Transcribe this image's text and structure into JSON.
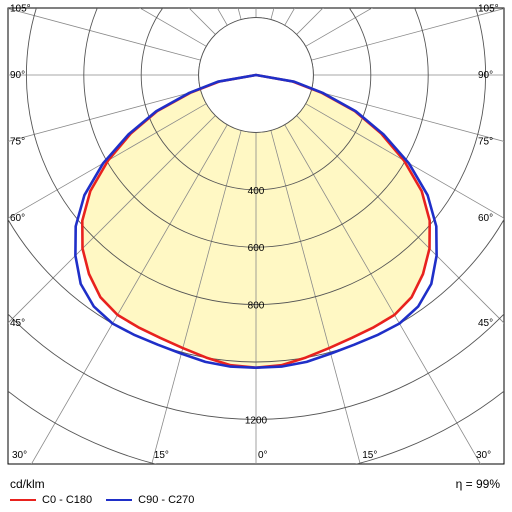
{
  "chart_data": {
    "type": "polar",
    "unit_label": "cd/klm",
    "efficiency_label": "η = 99%",
    "radial_max": 1400,
    "radial_rings": [
      200,
      400,
      600,
      800,
      1000,
      1200,
      1400
    ],
    "radial_labels": [
      {
        "value": 400,
        "text": "400"
      },
      {
        "value": 600,
        "text": "600"
      },
      {
        "value": 800,
        "text": "800"
      },
      {
        "value": 1200,
        "text": "1200"
      }
    ],
    "angle_spokes_deg": [
      0,
      15,
      30,
      45,
      60,
      75,
      90,
      105,
      120,
      135,
      150,
      165,
      180
    ],
    "angle_labels": [
      {
        "side": "left",
        "angle": 105,
        "text": "105°"
      },
      {
        "side": "left",
        "angle": 90,
        "text": "90°"
      },
      {
        "side": "left",
        "angle": 75,
        "text": "75°"
      },
      {
        "side": "left",
        "angle": 60,
        "text": "60°"
      },
      {
        "side": "left",
        "angle": 45,
        "text": "45°"
      },
      {
        "side": "right",
        "angle": 105,
        "text": "105°"
      },
      {
        "side": "right",
        "angle": 90,
        "text": "90°"
      },
      {
        "side": "right",
        "angle": 75,
        "text": "75°"
      },
      {
        "side": "right",
        "angle": 60,
        "text": "60°"
      },
      {
        "side": "right",
        "angle": 45,
        "text": "45°"
      },
      {
        "side": "bottom",
        "angle": -30,
        "text": "30°"
      },
      {
        "side": "bottom",
        "angle": -15,
        "text": "15°"
      },
      {
        "side": "bottom",
        "angle": 0,
        "text": "0°"
      },
      {
        "side": "bottom",
        "angle": 15,
        "text": "15°"
      },
      {
        "side": "bottom",
        "angle": 30,
        "text": "30°"
      }
    ],
    "series": [
      {
        "name": "C0 - C180",
        "color": "#e8221e",
        "fill": "#fff8c4",
        "angles": [
          0,
          5,
          10,
          15,
          20,
          25,
          30,
          35,
          40,
          45,
          50,
          55,
          60,
          65,
          70,
          75,
          80,
          90
        ],
        "values": [
          1020,
          1015,
          1000,
          985,
          975,
          970,
          965,
          945,
          905,
          855,
          790,
          705,
          595,
          480,
          365,
          235,
          130,
          0
        ]
      },
      {
        "name": "C90 - C270",
        "color": "#1f2fc8",
        "fill": "none",
        "angles": [
          0,
          5,
          10,
          15,
          20,
          25,
          30,
          35,
          40,
          45,
          50,
          55,
          60,
          65,
          70,
          75,
          80,
          90
        ],
        "values": [
          1020,
          1020,
          1015,
          1005,
          1000,
          1000,
          1000,
          985,
          950,
          890,
          820,
          730,
          615,
          490,
          370,
          240,
          135,
          0
        ]
      }
    ]
  }
}
